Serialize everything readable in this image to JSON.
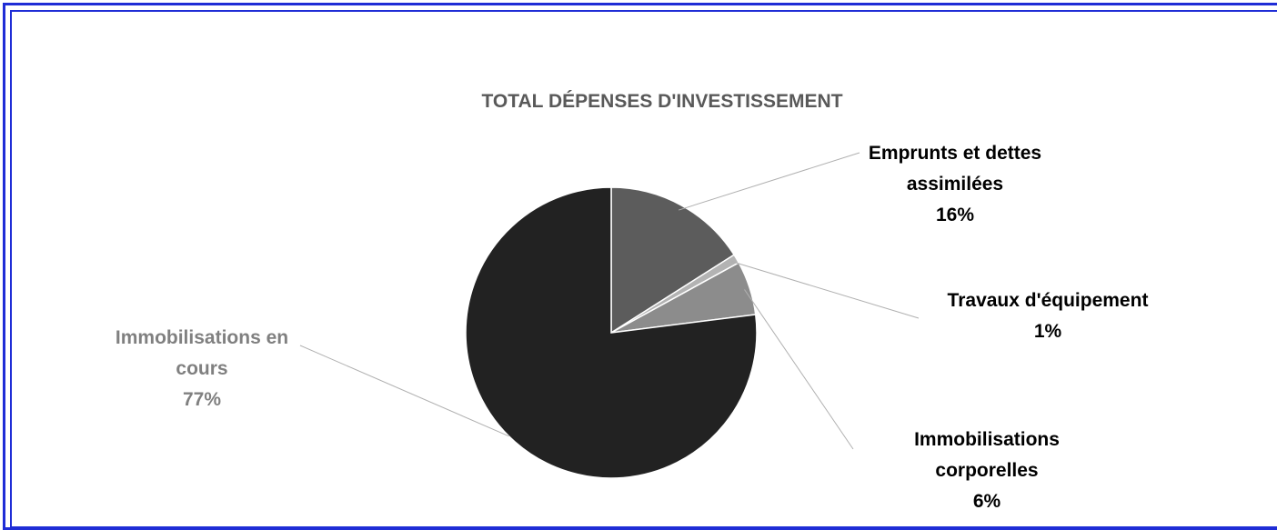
{
  "chart_data": {
    "type": "pie",
    "title": "TOTAL DÉPENSES D'INVESTISSEMENT",
    "slices": [
      {
        "name": "Emprunts et dettes assimilées",
        "label_lines": [
          "Emprunts et dettes",
          "assimilées"
        ],
        "value": 16,
        "percent_label": "16%",
        "color": "#5c5c5c",
        "label_color": "#000000"
      },
      {
        "name": "Travaux d'équipement",
        "label_lines": [
          "Travaux d'équipement"
        ],
        "value": 1,
        "percent_label": "1%",
        "color": "#b3b3b3",
        "label_color": "#000000"
      },
      {
        "name": "Immobilisations corporelles",
        "label_lines": [
          "Immobilisations",
          "corporelles"
        ],
        "value": 6,
        "percent_label": "6%",
        "color": "#8c8c8c",
        "label_color": "#000000"
      },
      {
        "name": "Immobilisations en cours",
        "label_lines": [
          "Immobilisations en",
          "cours"
        ],
        "value": 77,
        "percent_label": "77%",
        "color": "#222222",
        "label_color": "#808080"
      }
    ],
    "legend": "none",
    "border_color": "#1f2dd6"
  }
}
